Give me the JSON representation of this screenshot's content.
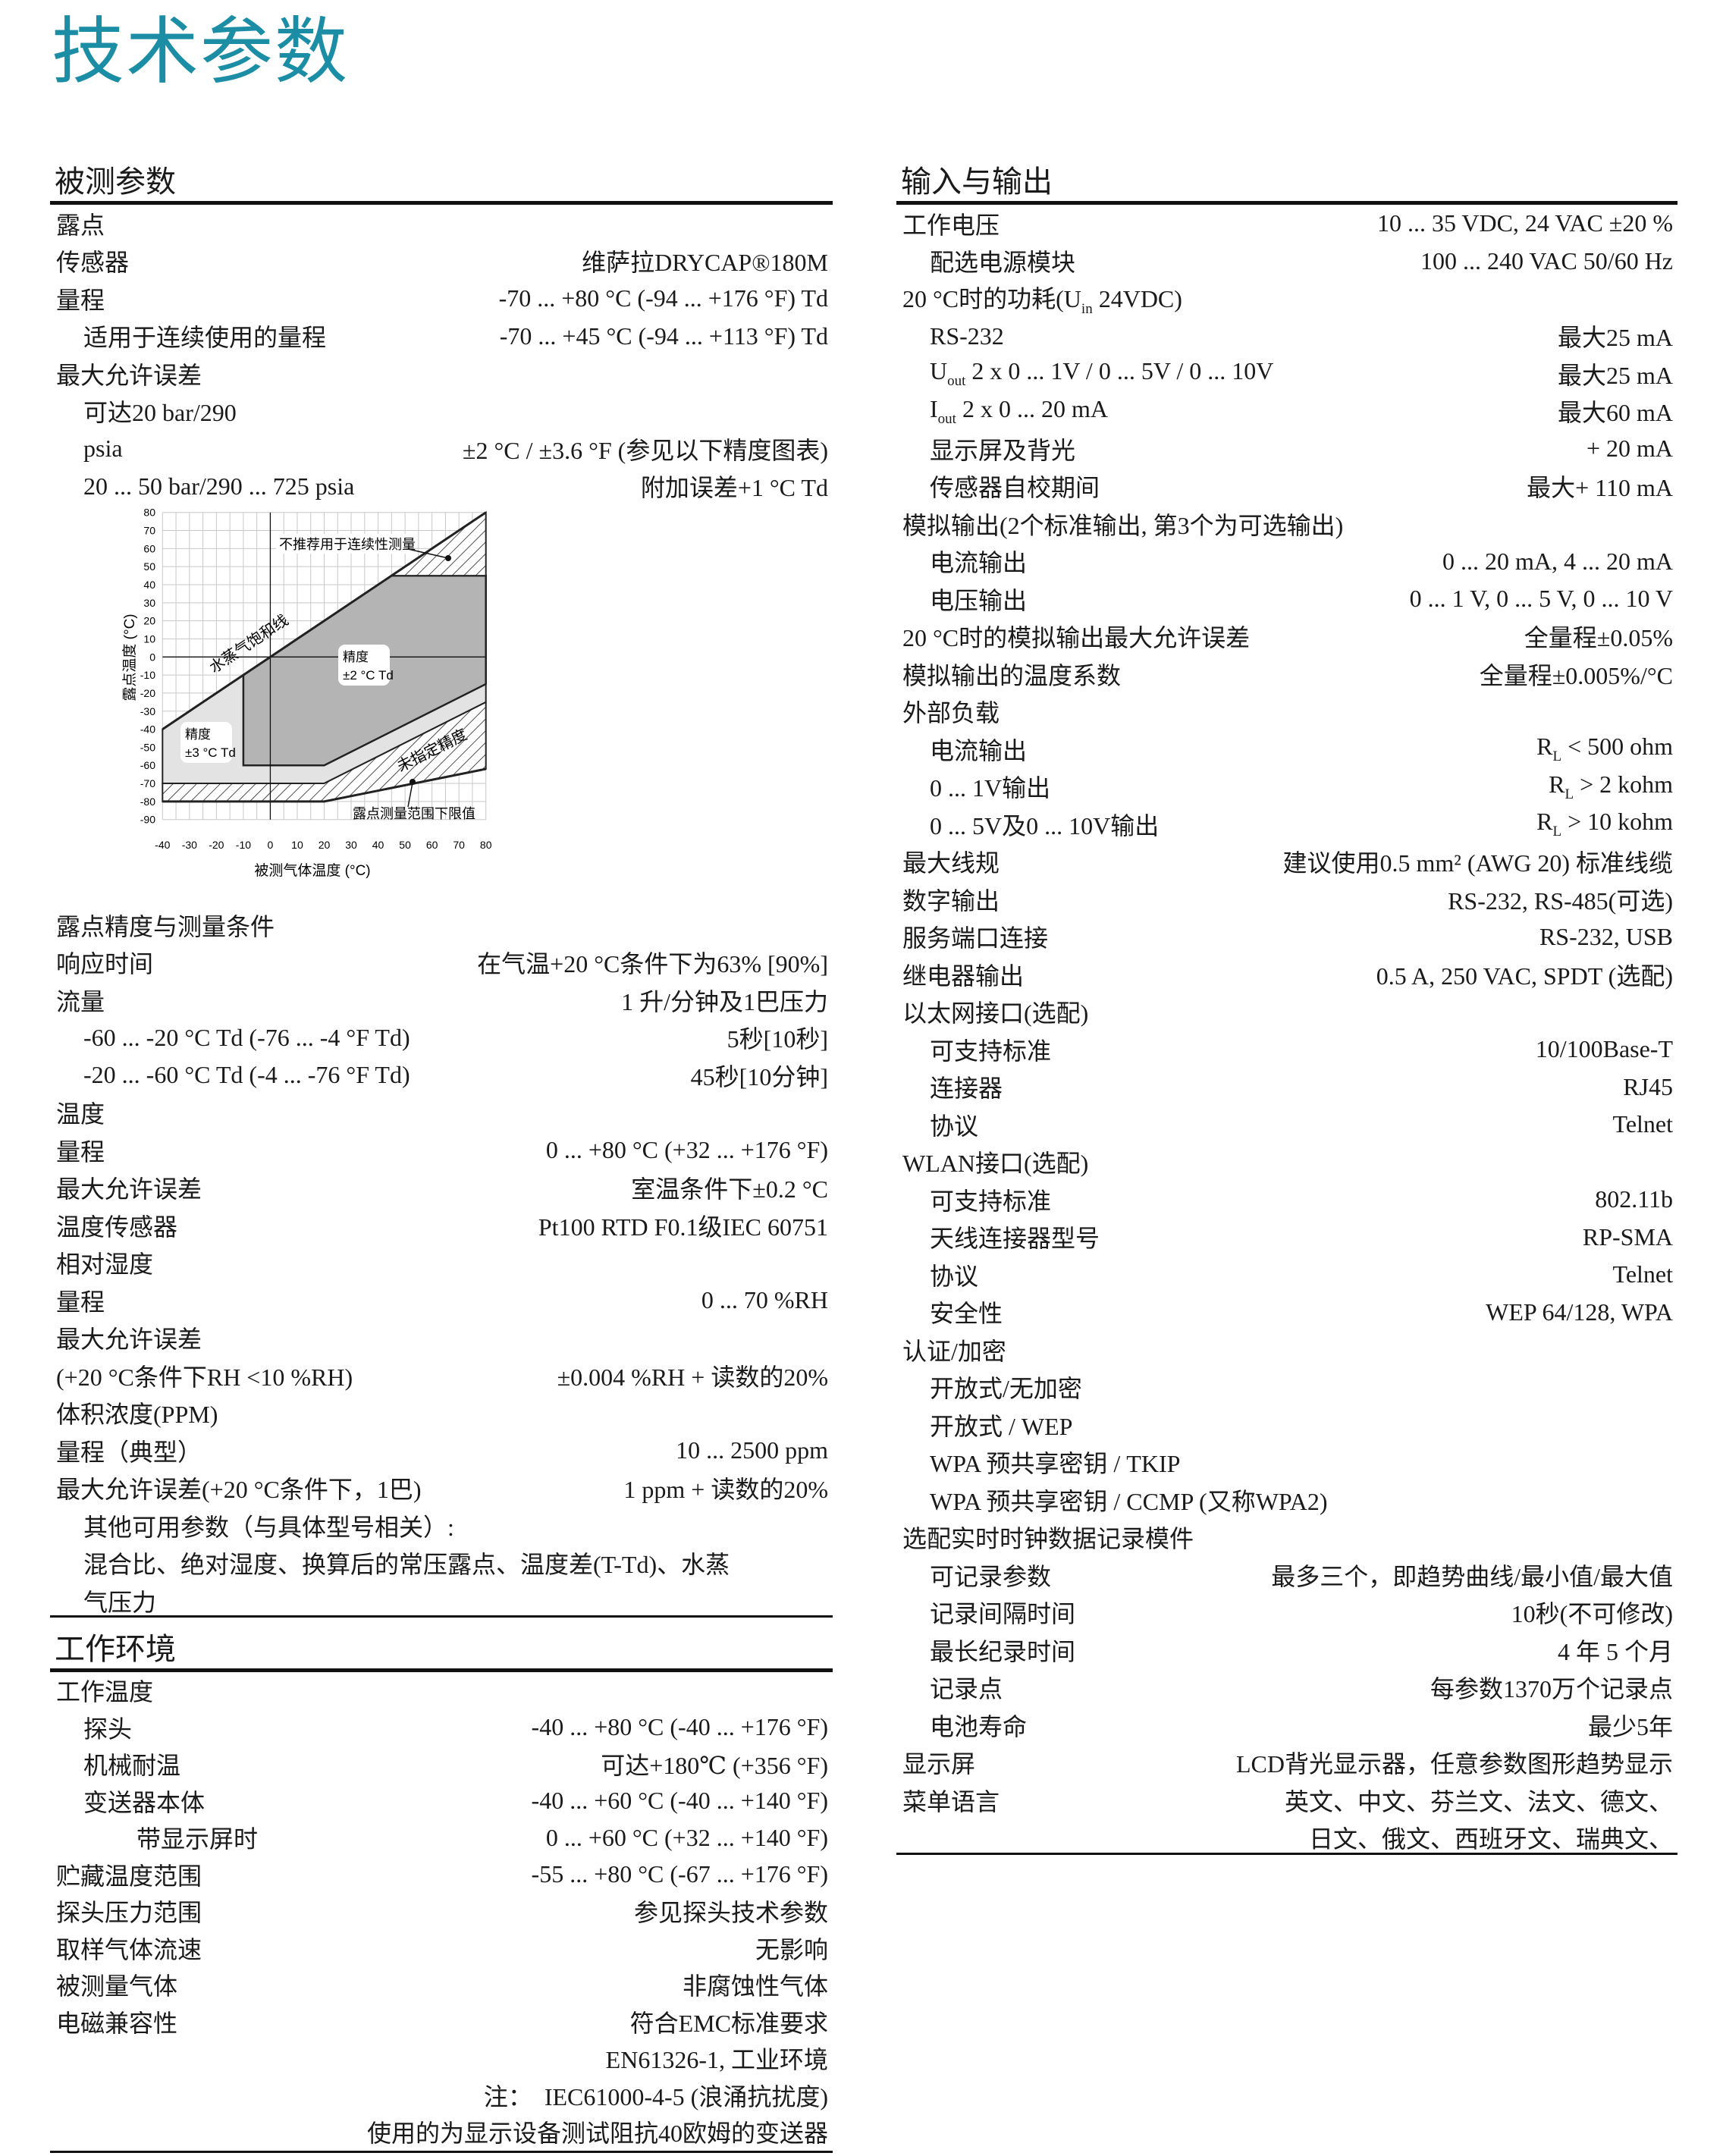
{
  "title": "技术参数",
  "left": {
    "sections": [
      {
        "heading": "被测参数",
        "rows": [
          {
            "l": "露点",
            "i": 0
          },
          {
            "l": "传感器",
            "r": "维萨拉DRYCAP®180M",
            "i": 0
          },
          {
            "l": "量程",
            "r": "-70 ... +80 °C (-94 ... +176 °F) Td",
            "i": 0
          },
          {
            "l": "适用于连续使用的量程",
            "r": "-70 ... +45 °C (-94 ... +113 °F) Td",
            "i": 1
          },
          {
            "l": "最大允许误差",
            "i": 0
          },
          {
            "l": "可达20 bar/290",
            "i": 1
          },
          {
            "l": "psia",
            "r": "±2 °C / ±3.6 °F (参见以下精度图表)",
            "i": 1
          },
          {
            "l": "20 ... 50 bar/290 ... 725 psia",
            "r": "附加误差+1 °C Td",
            "i": 1
          }
        ],
        "rows_after_chart": [
          {
            "l": "露点精度与测量条件",
            "i": 0
          },
          {
            "l": "响应时间",
            "r": "在气温+20 °C条件下为63% [90%]",
            "i": 0
          },
          {
            "l": "流量",
            "r": "1 升/分钟及1巴压力",
            "i": 0
          },
          {
            "l": "-60 ... -20 °C Td (-76 ... -4 °F Td)",
            "r": "5秒[10秒]",
            "i": 1
          },
          {
            "l": "-20 ... -60 °C Td (-4 ... -76 °F Td)",
            "r": "45秒[10分钟]",
            "i": 1
          },
          {
            "l": "温度",
            "i": 0
          },
          {
            "l": "量程",
            "r": "0 ... +80 °C (+32 ... +176 °F)",
            "i": 0
          },
          {
            "l": "最大允许误差",
            "r": "室温条件下±0.2 °C",
            "i": 0
          },
          {
            "l": "温度传感器",
            "r": "Pt100 RTD F0.1级IEC 60751",
            "i": 0
          },
          {
            "l": "相对湿度",
            "i": 0
          },
          {
            "l": "量程",
            "r": "0 ... 70 %RH",
            "i": 0
          },
          {
            "l": "最大允许误差",
            "i": 0
          },
          {
            "l": "(+20 °C条件下RH <10 %RH)",
            "r": "±0.004 %RH + 读数的20%",
            "i": 0
          },
          {
            "l": "体积浓度(PPM)",
            "i": 0
          },
          {
            "l": "量程（典型）",
            "r": "10 ... 2500 ppm",
            "i": 0
          },
          {
            "l": "最大允许误差(+20 °C条件下，1巴)",
            "r": "1 ppm + 读数的20%",
            "i": 0
          },
          {
            "l": "其他可用参数（与具体型号相关）:",
            "i": 1
          },
          {
            "l": "混合比、绝对湿度、换算后的常压露点、温度差(T-Td)、水蒸",
            "i": 1
          },
          {
            "l": "气压力",
            "i": 1
          }
        ]
      },
      {
        "heading": "工作环境",
        "rows": [
          {
            "l": "工作温度",
            "i": 0
          },
          {
            "l": "探头",
            "r": "-40 ... +80 °C (-40 ... +176 °F)",
            "i": 1
          },
          {
            "l": "机械耐温",
            "r": "可达+180℃ (+356 °F)",
            "i": 1
          },
          {
            "l": "变送器本体",
            "r": "-40 ... +60 °C (-40 ... +140 °F)",
            "i": 1
          },
          {
            "l": "带显示屏时",
            "r": "0 ... +60 °C (+32 ... +140 °F)",
            "i": 2
          },
          {
            "l": "贮藏温度范围",
            "r": "-55 ... +80 °C (-67 ... +176 °F)",
            "i": 0
          },
          {
            "l": "探头压力范围",
            "r": "参见探头技术参数",
            "i": 0
          },
          {
            "l": "取样气体流速",
            "r": "无影响",
            "i": 0
          },
          {
            "l": "被测量气体",
            "r": "非腐蚀性气体",
            "i": 0
          },
          {
            "l": "电磁兼容性",
            "r": "符合EMC标准要求",
            "i": 0
          },
          {
            "r": "EN61326-1, 工业环境",
            "i": 0
          },
          {
            "r": "注：  IEC61000-4-5 (浪涌抗扰度)",
            "i": 0
          },
          {
            "r": "使用的为显示设备测试阻抗40欧姆的变送器",
            "i": 0
          }
        ]
      }
    ]
  },
  "right": {
    "heading": "输入与输出",
    "rows": [
      {
        "l": "工作电压",
        "r": "10 ... 35 VDC, 24 VAC ±20 %",
        "i": 0
      },
      {
        "l": "配选电源模块",
        "r": "100 ... 240 VAC 50/60 Hz",
        "i": 1
      },
      {
        "l": "20 °C时的功耗(U",
        "l_sub": "in",
        "l_after": " 24VDC)",
        "i": 0
      },
      {
        "l": "RS-232",
        "r": "最大25 mA",
        "i": 1
      },
      {
        "l": "U",
        "l_sub": "out",
        "l_after": " 2 x 0 ... 1V / 0 ... 5V / 0 ... 10V",
        "r": "最大25 mA",
        "i": 1
      },
      {
        "l": "I",
        "l_sub": "out",
        "l_after": " 2 x 0 ... 20 mA",
        "r": "最大60 mA",
        "i": 1
      },
      {
        "l": "显示屏及背光",
        "r": "+ 20 mA",
        "i": 1
      },
      {
        "l": "传感器自校期间",
        "r": "最大+ 110 mA",
        "i": 1
      },
      {
        "l": "模拟输出(2个标准输出, 第3个为可选输出)",
        "i": 0
      },
      {
        "l": "电流输出",
        "r": "0 ... 20 mA, 4 ... 20 mA",
        "i": 1
      },
      {
        "l": "电压输出",
        "r": "0 ... 1 V, 0 ... 5 V, 0 ... 10 V",
        "i": 1
      },
      {
        "l": "20 °C时的模拟输出最大允许误差",
        "r": "全量程±0.05%",
        "i": 0
      },
      {
        "l": "模拟输出的温度系数",
        "r": "全量程±0.005%/°C",
        "i": 0
      },
      {
        "l": "外部负载",
        "i": 0
      },
      {
        "l": "电流输出",
        "r": "R",
        "r_sub": "L",
        "r_after": " < 500 ohm",
        "i": 1
      },
      {
        "l": "0 ... 1V输出",
        "r": "R",
        "r_sub": "L",
        "r_after": " > 2 kohm",
        "i": 1
      },
      {
        "l": "0 ... 5V及0 ... 10V输出",
        "r": "R",
        "r_sub": "L",
        "r_after": " > 10 kohm",
        "i": 1
      },
      {
        "l": "最大线规",
        "r": "建议使用0.5 mm² (AWG 20) 标准线缆",
        "i": 0
      },
      {
        "l": "数字输出",
        "r": "RS-232, RS-485(可选)",
        "i": 0
      },
      {
        "l": "服务端口连接",
        "r": "RS-232, USB",
        "i": 0
      },
      {
        "l": "继电器输出",
        "r": "0.5 A, 250 VAC, SPDT (选配)",
        "i": 0
      },
      {
        "l": "以太网接口(选配)",
        "i": 0
      },
      {
        "l": "可支持标准",
        "r": "10/100Base-T",
        "i": 1
      },
      {
        "l": "连接器",
        "r": "RJ45",
        "i": 1
      },
      {
        "l": "协议",
        "r": "Telnet",
        "i": 1
      },
      {
        "l": "WLAN接口(选配)",
        "i": 0
      },
      {
        "l": "可支持标准",
        "r": "802.11b",
        "i": 1
      },
      {
        "l": "天线连接器型号",
        "r": "RP-SMA",
        "i": 1
      },
      {
        "l": "协议",
        "r": "Telnet",
        "i": 1
      },
      {
        "l": "安全性",
        "r": "WEP 64/128, WPA",
        "i": 1
      },
      {
        "l": "认证/加密",
        "i": 0
      },
      {
        "l": "开放式/无加密",
        "i": 1
      },
      {
        "l": "开放式 / WEP",
        "i": 1
      },
      {
        "l": "WPA 预共享密钥 / TKIP",
        "i": 1
      },
      {
        "l": "WPA 预共享密钥 / CCMP (又称WPA2)",
        "i": 1
      },
      {
        "l": "选配实时时钟数据记录模件",
        "i": 0
      },
      {
        "l": "可记录参数",
        "r": "最多三个，即趋势曲线/最小值/最大值",
        "i": 1
      },
      {
        "l": "记录间隔时间",
        "r": "10秒(不可修改)",
        "i": 1
      },
      {
        "l": "最长纪录时间",
        "r": "4 年 5 个月",
        "i": 1
      },
      {
        "l": "记录点",
        "r": "每参数1370万个记录点",
        "i": 1
      },
      {
        "l": "电池寿命",
        "r": "最少5年",
        "i": 1
      },
      {
        "l": "显示屏",
        "r": "LCD背光显示器，任意参数图形趋势显示",
        "i": 0
      },
      {
        "l": "菜单语言",
        "r": "英文、中文、芬兰文、法文、德文、",
        "i": 0
      },
      {
        "r": "日文、俄文、西班牙文、瑞典文、",
        "i": 0
      }
    ]
  },
  "chart_data": {
    "type": "area",
    "xlabel": "被测气体温度 (°C)",
    "ylabel": "露点温度 (°C)",
    "xlim": [
      -40,
      80
    ],
    "ylim": [
      -90,
      80
    ],
    "xticks": [
      -40,
      -30,
      -20,
      -10,
      0,
      10,
      20,
      30,
      40,
      50,
      60,
      70,
      80
    ],
    "yticks": [
      80,
      70,
      60,
      50,
      40,
      30,
      20,
      10,
      0,
      -10,
      -20,
      -30,
      -40,
      -50,
      -60,
      -70,
      -80,
      -90
    ],
    "grid": true,
    "colors": {
      "light": "#e3e3e3",
      "dark": "#b4b4b4",
      "hatch": "#222222"
    },
    "regions": [
      {
        "name": "精度 ±3 °C Td",
        "fill": "light",
        "points": [
          [
            -40,
            -40
          ],
          [
            45,
            45
          ],
          [
            80,
            45
          ],
          [
            80,
            -25
          ],
          [
            20,
            -70
          ],
          [
            -40,
            -70
          ]
        ]
      },
      {
        "name": "精度 ±2 °C Td",
        "fill": "dark",
        "points": [
          [
            -10,
            -10
          ],
          [
            45,
            45
          ],
          [
            80,
            45
          ],
          [
            80,
            -15
          ],
          [
            20,
            -60
          ],
          [
            -10,
            -60
          ]
        ]
      },
      {
        "name": "不推荐用于连续性测量",
        "fill": "hatch",
        "points": [
          [
            45,
            45
          ],
          [
            80,
            80
          ],
          [
            80,
            45
          ]
        ]
      },
      {
        "name": "未指定精度",
        "fill": "hatch",
        "points": [
          [
            -40,
            -70
          ],
          [
            20,
            -70
          ],
          [
            80,
            -25
          ],
          [
            80,
            -62
          ],
          [
            20,
            -80
          ],
          [
            -40,
            -80
          ]
        ]
      }
    ],
    "lines": [
      {
        "name": "水蒸气饱和线",
        "points": [
          [
            -40,
            -40
          ],
          [
            80,
            80
          ]
        ]
      },
      {
        "name": "露点测量范围下限值",
        "points": [
          [
            -40,
            -80
          ],
          [
            20,
            -80
          ],
          [
            80,
            -62
          ]
        ]
      }
    ],
    "annotations": {
      "not_recommended": "不推荐用于连续性测量",
      "saturation": "水蒸气饱和线",
      "acc2_title": "精度",
      "acc2_value": "±2 °C Td",
      "acc3_title": "精度",
      "acc3_value": "±3 °C Td",
      "unspecified": "未指定精度",
      "lower_limit": "露点测量范围下限值"
    }
  }
}
